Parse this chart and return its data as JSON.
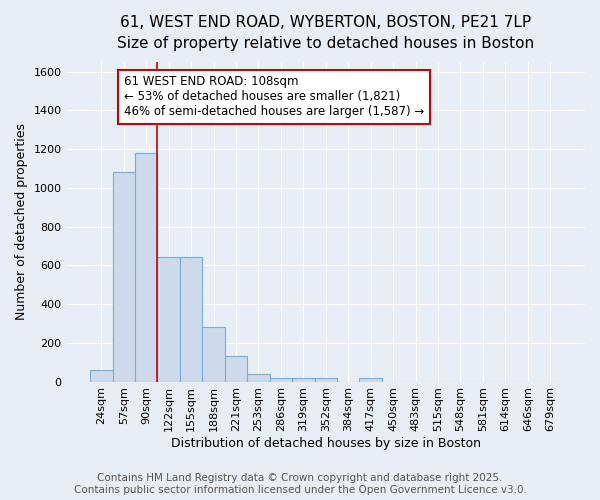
{
  "title_line1": "61, WEST END ROAD, WYBERTON, BOSTON, PE21 7LP",
  "title_line2": "Size of property relative to detached houses in Boston",
  "xlabel": "Distribution of detached houses by size in Boston",
  "ylabel": "Number of detached properties",
  "categories": [
    "24sqm",
    "57sqm",
    "90sqm",
    "122sqm",
    "155sqm",
    "188sqm",
    "221sqm",
    "253sqm",
    "286sqm",
    "319sqm",
    "352sqm",
    "384sqm",
    "417sqm",
    "450sqm",
    "483sqm",
    "515sqm",
    "548sqm",
    "581sqm",
    "614sqm",
    "646sqm",
    "679sqm"
  ],
  "values": [
    60,
    1080,
    1180,
    645,
    645,
    280,
    130,
    38,
    20,
    20,
    20,
    0,
    20,
    0,
    0,
    0,
    0,
    0,
    0,
    0,
    0
  ],
  "bar_color": "#ccdaeb",
  "bar_edge_color": "#7aadd4",
  "bar_width": 1.0,
  "ylim": [
    0,
    1650
  ],
  "yticks": [
    0,
    200,
    400,
    600,
    800,
    1000,
    1200,
    1400,
    1600
  ],
  "red_line_x": 2.5,
  "annotation_line1": "61 WEST END ROAD: 108sqm",
  "annotation_line2": "← 53% of detached houses are smaller (1,821)",
  "annotation_line3": "46% of semi-detached houses are larger (1,587) →",
  "annotation_box_color": "#ffffff",
  "annotation_edge_color": "#cc0000",
  "footer_line1": "Contains HM Land Registry data © Crown copyright and database right 2025.",
  "footer_line2": "Contains public sector information licensed under the Open Government Licence v3.0.",
  "bg_color": "#e8eef5",
  "grid_color": "#ffffff",
  "title_fontsize": 11,
  "subtitle_fontsize": 10,
  "axis_label_fontsize": 9,
  "tick_fontsize": 8,
  "annotation_fontsize": 8.5,
  "footer_fontsize": 7.5
}
